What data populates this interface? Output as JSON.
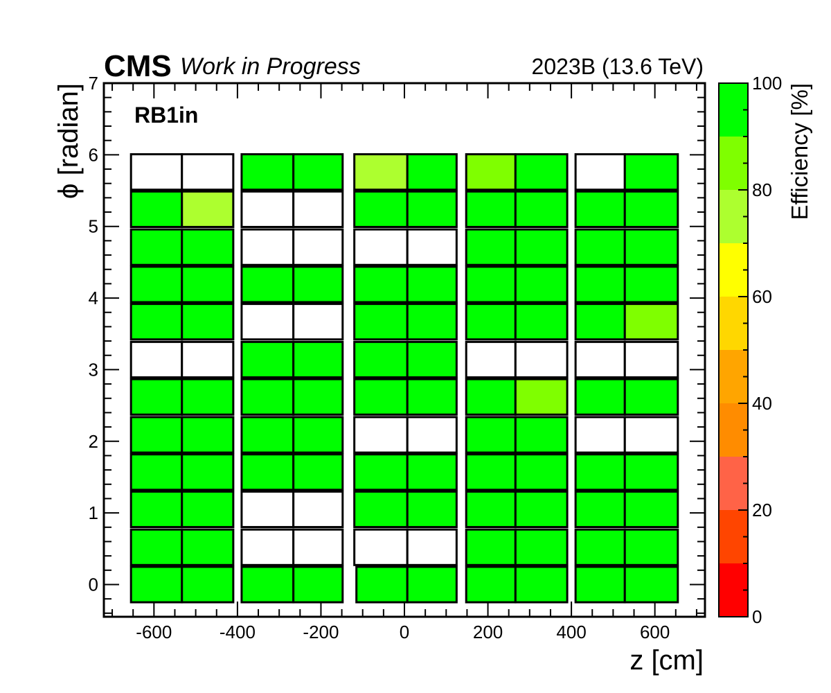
{
  "header": {
    "experiment": "CMS",
    "status": "Work in Progress",
    "run_info": "2023B (13.6 TeV)"
  },
  "chart_data": {
    "type": "heatmap",
    "station_label": "RB1in",
    "xlabel": "z [cm]",
    "ylabel": "ϕ [radian]",
    "zlabel": "Efficiency [%]",
    "xlim": [
      -720,
      720
    ],
    "ylim": [
      -0.45,
      7
    ],
    "zlim": [
      0,
      100
    ],
    "x_ticks": [
      "-600",
      "-400",
      "-200",
      "0",
      "200",
      "400",
      "600"
    ],
    "x_tick_values": [
      -600,
      -400,
      -200,
      0,
      200,
      400,
      600
    ],
    "y_ticks": [
      "0",
      "1",
      "2",
      "3",
      "4",
      "5",
      "6",
      "7"
    ],
    "y_tick_values": [
      0,
      1,
      2,
      3,
      4,
      5,
      6,
      7
    ],
    "z_ticks": [
      "0",
      "20",
      "40",
      "60",
      "80",
      "100"
    ],
    "z_tick_values": [
      0,
      20,
      40,
      60,
      80,
      100
    ],
    "colorscale": [
      {
        "range": [
          0,
          10
        ],
        "color": "#ff0000"
      },
      {
        "range": [
          10,
          20
        ],
        "color": "#ff4500"
      },
      {
        "range": [
          20,
          30
        ],
        "color": "#ff6347"
      },
      {
        "range": [
          30,
          40
        ],
        "color": "#ff8c00"
      },
      {
        "range": [
          40,
          50
        ],
        "color": "#ffa500"
      },
      {
        "range": [
          50,
          60
        ],
        "color": "#ffd700"
      },
      {
        "range": [
          60,
          70
        ],
        "color": "#ffff00"
      },
      {
        "range": [
          70,
          80
        ],
        "color": "#adff2f"
      },
      {
        "range": [
          80,
          90
        ],
        "color": "#7fff00"
      },
      {
        "range": [
          90,
          100
        ],
        "color": "#00ff00"
      }
    ],
    "no_data_color": "#ffffff",
    "wheels": [
      {
        "z_center": -532,
        "roll_boundaries": [
          -655,
          -533,
          -410
        ],
        "cell_height": 0.475
      },
      {
        "z_center": -266,
        "roll_boundaries": [
          -390,
          -266,
          -148
        ],
        "cell_height": 0.475
      },
      {
        "z_center": 0,
        "roll_boundaries": [
          -120,
          7,
          125
        ],
        "cell_height": 0.475
      },
      {
        "z_center": 266,
        "roll_boundaries": [
          148,
          266,
          390
        ],
        "cell_height": 0.475
      },
      {
        "z_center": 532,
        "roll_boundaries": [
          410,
          528,
          655
        ],
        "cell_height": 0.475
      }
    ],
    "special_sectors": [
      {
        "wheel": 1,
        "phi": 1.0,
        "roll_boundaries": [
          -390,
          -284,
          -184
        ]
      },
      {
        "wheel": 2,
        "phi": 0.0,
        "roll_boundaries": [
          -115,
          7,
          125
        ]
      },
      {
        "wheel": 3,
        "phi": 1.5,
        "roll_boundaries": [
          188,
          286,
          390
        ]
      }
    ],
    "rows_phi": [
      0.0,
      0.52,
      1.05,
      1.57,
      2.09,
      2.62,
      3.14,
      3.67,
      4.19,
      4.71,
      5.24,
      5.76
    ],
    "efficiency": [
      [
        [
          95,
          95
        ],
        [
          95,
          95
        ],
        [
          95,
          95
        ],
        [
          95,
          95
        ],
        [
          95,
          95
        ]
      ],
      [
        [
          95,
          95
        ],
        [
          null,
          null
        ],
        [
          null,
          null
        ],
        [
          95,
          95
        ],
        [
          95,
          95
        ]
      ],
      [
        [
          95,
          95
        ],
        [
          null,
          null
        ],
        [
          95,
          95
        ],
        [
          95,
          95
        ],
        [
          95,
          95
        ]
      ],
      [
        [
          95,
          95
        ],
        [
          95,
          95
        ],
        [
          95,
          95
        ],
        [
          95,
          95
        ],
        [
          95,
          95
        ]
      ],
      [
        [
          95,
          95
        ],
        [
          95,
          95
        ],
        [
          null,
          null
        ],
        [
          95,
          95
        ],
        [
          null,
          null
        ]
      ],
      [
        [
          95,
          95
        ],
        [
          95,
          95
        ],
        [
          95,
          95
        ],
        [
          95,
          85
        ],
        [
          95,
          95
        ]
      ],
      [
        [
          null,
          null
        ],
        [
          95,
          95
        ],
        [
          95,
          95
        ],
        [
          null,
          null
        ],
        [
          null,
          null
        ]
      ],
      [
        [
          95,
          95
        ],
        [
          null,
          null
        ],
        [
          95,
          95
        ],
        [
          95,
          95
        ],
        [
          95,
          85
        ]
      ],
      [
        [
          95,
          95
        ],
        [
          95,
          95
        ],
        [
          95,
          95
        ],
        [
          95,
          95
        ],
        [
          95,
          95
        ]
      ],
      [
        [
          95,
          95
        ],
        [
          null,
          null
        ],
        [
          null,
          null
        ],
        [
          95,
          95
        ],
        [
          95,
          95
        ]
      ],
      [
        [
          95,
          75
        ],
        [
          null,
          null
        ],
        [
          95,
          95
        ],
        [
          95,
          95
        ],
        [
          95,
          95
        ]
      ],
      [
        [
          null,
          null
        ],
        [
          95,
          95
        ],
        [
          75,
          95
        ],
        [
          85,
          95
        ],
        [
          null,
          95
        ]
      ]
    ]
  }
}
